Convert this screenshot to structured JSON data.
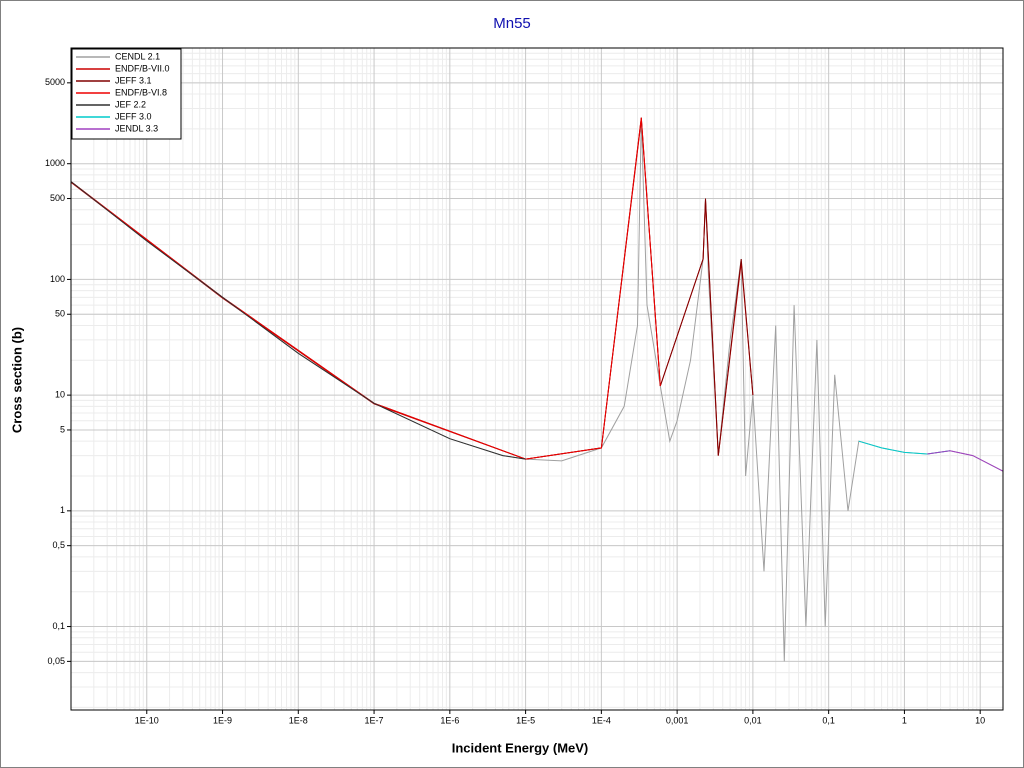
{
  "chart_data": {
    "type": "line",
    "title": "Mn55",
    "x_label": "Incident Energy (MeV)",
    "y_label": "Cross section (b)",
    "xlog": true,
    "ylog": true,
    "grid": true,
    "legend": "upper left",
    "xlim": [
      1e-11,
      20
    ],
    "ylim": [
      0.019,
      10000
    ],
    "xticks": [
      {
        "value": 1e-10,
        "label": "1E-10"
      },
      {
        "value": 1e-09,
        "label": "1E-9"
      },
      {
        "value": 1e-08,
        "label": "1E-8"
      },
      {
        "value": 1e-07,
        "label": "1E-7"
      },
      {
        "value": 1e-06,
        "label": "1E-6"
      },
      {
        "value": 1e-05,
        "label": "1E-5"
      },
      {
        "value": 0.0001,
        "label": "1E-4"
      },
      {
        "value": 0.001,
        "label": "0,001"
      },
      {
        "value": 0.01,
        "label": "0,01"
      },
      {
        "value": 0.1,
        "label": "0,1"
      },
      1,
      10
    ],
    "yticks": [
      {
        "value": 0.05,
        "label": "0,05"
      },
      {
        "value": 0.1,
        "label": "0,1"
      },
      {
        "value": 0.5,
        "label": "0,5"
      },
      1,
      5,
      10,
      50,
      100,
      500,
      1000,
      5000
    ],
    "series": [
      {
        "name": "CENDL 2.1",
        "color": "#a0a0a0",
        "x": [
          1e-11,
          1e-10,
          1e-09,
          1e-08,
          1e-07,
          1e-06,
          5e-06,
          1e-05,
          3e-05,
          0.0001,
          0.0002,
          0.0003,
          0.000337,
          0.0004,
          0.0006,
          0.0008,
          0.001,
          0.0015,
          0.0022,
          0.00237,
          0.0026,
          0.0035,
          0.005,
          0.007,
          0.008,
          0.01,
          0.014,
          0.02,
          0.026,
          0.035,
          0.05,
          0.07,
          0.09,
          0.12,
          0.18,
          0.25,
          0.5,
          1,
          2,
          4,
          8,
          20
        ],
        "values": [
          700,
          215,
          70,
          23,
          8.5,
          4.2,
          3.0,
          2.8,
          2.7,
          3.5,
          8,
          40,
          2500,
          60,
          12,
          4,
          6,
          20,
          150,
          500,
          100,
          3,
          30,
          150,
          2,
          10,
          0.3,
          40,
          0.05,
          60,
          0.1,
          30,
          0.1,
          15,
          1,
          4,
          3.5,
          3.2,
          3.1,
          3.3,
          3,
          2.2
        ]
      },
      {
        "name": "ENDF/B-VII.0",
        "color": "#cc0000",
        "x": [
          1e-11,
          1e-09,
          1e-07,
          1e-05,
          0.0001,
          0.000337,
          0.0006,
          0.0022,
          0.00237,
          0.0035,
          0.007,
          0.01
        ],
        "values": [
          690,
          69,
          8.4,
          2.8,
          3.5,
          2400,
          12,
          150,
          480,
          3,
          140,
          10
        ]
      },
      {
        "name": "JEFF 3.1",
        "color": "#800000",
        "x": [
          1e-11,
          1e-09,
          1e-07,
          1e-05,
          0.0001,
          0.000337,
          0.0006,
          0.0022,
          0.00237,
          0.0035,
          0.007,
          0.01
        ],
        "values": [
          700,
          70,
          8.5,
          2.8,
          3.5,
          2500,
          12,
          150,
          500,
          3,
          150,
          10
        ]
      },
      {
        "name": "ENDF/B-VI.8",
        "color": "#ee0000",
        "x": [
          1e-11,
          1e-09,
          1e-07,
          1e-05,
          0.0001,
          0.000337,
          0.0006
        ],
        "values": [
          700,
          70,
          8.5,
          2.8,
          3.5,
          2500,
          12
        ]
      },
      {
        "name": "JEF 2.2",
        "color": "#303030",
        "x": [
          1e-11,
          1e-10,
          1e-09,
          1e-08,
          1e-07,
          1e-06,
          5e-06,
          1e-05
        ],
        "values": [
          700,
          215,
          70,
          23,
          8.5,
          4.2,
          3.0,
          2.8
        ]
      },
      {
        "name": "JEFF 3.0",
        "color": "#00cccc",
        "x": [
          0.25,
          0.5,
          1,
          2,
          4
        ],
        "values": [
          4,
          3.5,
          3.2,
          3.1,
          3.3
        ]
      },
      {
        "name": "JENDL 3.3",
        "color": "#a040c0",
        "x": [
          2,
          4,
          8,
          20
        ],
        "values": [
          3.1,
          3.3,
          3,
          2.2
        ]
      }
    ]
  }
}
